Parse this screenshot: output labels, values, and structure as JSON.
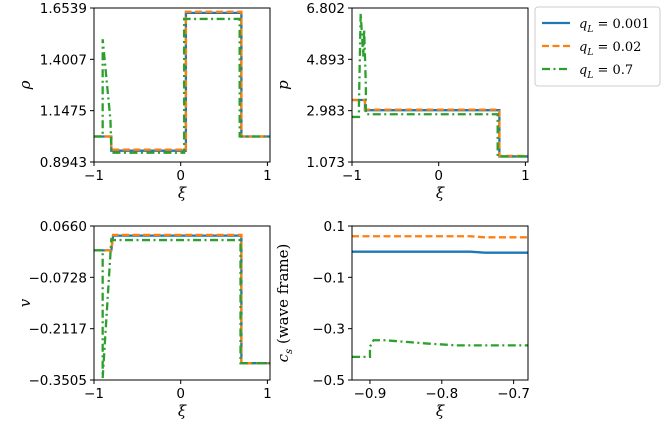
{
  "chart_data": [
    {
      "id": "rho",
      "type": "line",
      "xlabel": "ξ",
      "ylabel": "ρ",
      "xlim": [
        -1.0,
        1.03
      ],
      "ylim": [
        0.8943,
        1.6539
      ],
      "xticks": [
        -1,
        0,
        1
      ],
      "xtick_labels": [
        "−1",
        "0",
        "1"
      ],
      "yticks": [
        0.8943,
        1.1475,
        1.4007,
        1.6539
      ],
      "ytick_labels": [
        "0.8943",
        "1.1475",
        "1.4007",
        "1.6539"
      ],
      "series": [
        {
          "name": "q_L = 0.001",
          "x": [
            -1.0,
            -0.8,
            -0.8,
            0.06,
            0.06,
            0.7,
            0.7,
            1.03
          ],
          "y": [
            1.02,
            1.02,
            0.95,
            0.95,
            1.63,
            1.63,
            1.02,
            1.02
          ]
        },
        {
          "name": "q_L = 0.02",
          "x": [
            -1.0,
            -0.8,
            -0.8,
            0.06,
            0.06,
            0.7,
            0.7,
            1.03
          ],
          "y": [
            1.02,
            1.02,
            0.955,
            0.955,
            1.635,
            1.635,
            1.02,
            1.02
          ]
        },
        {
          "name": "q_L = 0.7",
          "x": [
            -1.0,
            -0.9,
            -0.9,
            -0.81,
            -0.8,
            0.04,
            0.04,
            0.68,
            0.68,
            1.03
          ],
          "y": [
            1.02,
            1.02,
            1.5,
            1.1,
            0.94,
            0.94,
            1.6,
            1.6,
            1.02,
            1.02
          ]
        }
      ]
    },
    {
      "id": "p",
      "type": "line",
      "xlabel": "ξ",
      "ylabel": "p",
      "xlim": [
        -1.0,
        1.03
      ],
      "ylim": [
        1.073,
        6.802
      ],
      "xticks": [
        -1,
        0,
        1
      ],
      "xtick_labels": [
        "−1",
        "0",
        "1"
      ],
      "yticks": [
        1.073,
        2.983,
        4.893,
        6.802
      ],
      "ytick_labels": [
        "1.073",
        "2.983",
        "4.893",
        "6.802"
      ],
      "series": [
        {
          "name": "q_L = 0.001",
          "x": [
            -1.0,
            -0.85,
            -0.85,
            0.7,
            0.7,
            1.03
          ],
          "y": [
            3.38,
            3.38,
            3.0,
            3.0,
            1.28,
            1.28
          ]
        },
        {
          "name": "q_L = 0.02",
          "x": [
            -1.0,
            -0.85,
            -0.85,
            0.7,
            0.7,
            1.03
          ],
          "y": [
            3.38,
            3.38,
            3.02,
            3.02,
            1.3,
            1.3
          ]
        },
        {
          "name": "q_L = 0.7",
          "x": [
            -1.0,
            -0.92,
            -0.92,
            -0.9,
            -0.87,
            -0.86,
            -0.84,
            -0.84,
            0.68,
            0.68,
            1.03
          ],
          "y": [
            2.75,
            2.75,
            3.2,
            6.6,
            5.0,
            6.0,
            3.9,
            2.85,
            2.85,
            1.28,
            1.28
          ]
        }
      ]
    },
    {
      "id": "v",
      "type": "line",
      "xlabel": "ξ",
      "ylabel": "v",
      "xlim": [
        -1.0,
        1.03
      ],
      "ylim": [
        -0.3505,
        0.066
      ],
      "xticks": [
        -1,
        0,
        1
      ],
      "xtick_labels": [
        "−1",
        "0",
        "1"
      ],
      "yticks": [
        -0.3505,
        -0.2117,
        -0.0728,
        0.066
      ],
      "ytick_labels": [
        "−0.3505",
        "−0.2117",
        "−0.0728",
        "0.0660"
      ],
      "series": [
        {
          "name": "q_L = 0.001",
          "x": [
            -1.0,
            -0.8,
            -0.78,
            0.7,
            0.7,
            1.03
          ],
          "y": [
            0.0,
            0.0,
            0.04,
            0.04,
            -0.305,
            -0.305
          ]
        },
        {
          "name": "q_L = 0.02",
          "x": [
            -1.0,
            -0.8,
            -0.78,
            0.7,
            0.7,
            1.03
          ],
          "y": [
            0.0,
            0.0,
            0.042,
            0.042,
            -0.305,
            -0.305
          ]
        },
        {
          "name": "q_L = 0.7",
          "x": [
            -1.0,
            -0.9,
            -0.9,
            -0.8,
            -0.78,
            0.69,
            0.69,
            1.03
          ],
          "y": [
            0.0,
            0.0,
            -0.345,
            0.03,
            0.028,
            0.028,
            -0.305,
            -0.305
          ]
        }
      ]
    },
    {
      "id": "cs",
      "type": "line",
      "xlabel": "ξ",
      "ylabel": "c_s (wave frame)",
      "xlim": [
        -0.925,
        -0.68
      ],
      "ylim": [
        -0.5,
        0.1
      ],
      "xticks": [
        -0.9,
        -0.8,
        -0.7
      ],
      "xtick_labels": [
        "−0.9",
        "−0.8",
        "−0.7"
      ],
      "yticks": [
        -0.5,
        -0.3,
        -0.1,
        0.1
      ],
      "ytick_labels": [
        "−0.5",
        "−0.3",
        "−0.1",
        "0.1"
      ],
      "series": [
        {
          "name": "q_L = 0.001",
          "x": [
            -0.925,
            -0.76,
            -0.74,
            -0.68
          ],
          "y": [
            0.0,
            0.0,
            -0.004,
            -0.004
          ]
        },
        {
          "name": "q_L = 0.02",
          "x": [
            -0.925,
            -0.76,
            -0.74,
            -0.68
          ],
          "y": [
            0.06,
            0.06,
            0.056,
            0.056
          ]
        },
        {
          "name": "q_L = 0.7",
          "x": [
            -0.925,
            -0.9,
            -0.9,
            -0.895,
            -0.88,
            -0.82,
            -0.78,
            -0.68
          ],
          "y": [
            -0.41,
            -0.41,
            -0.37,
            -0.345,
            -0.345,
            -0.358,
            -0.365,
            -0.365
          ]
        }
      ]
    }
  ],
  "legend": {
    "position": "upper-right",
    "entries": [
      {
        "label": "q_L = 0.001",
        "color": "#1f77b4",
        "dash": "solid"
      },
      {
        "label": "q_L = 0.02",
        "color": "#ff7f0e",
        "dash": "dashed"
      },
      {
        "label": "q_L = 0.7",
        "color": "#2ca02c",
        "dash": "dashdot"
      }
    ]
  }
}
